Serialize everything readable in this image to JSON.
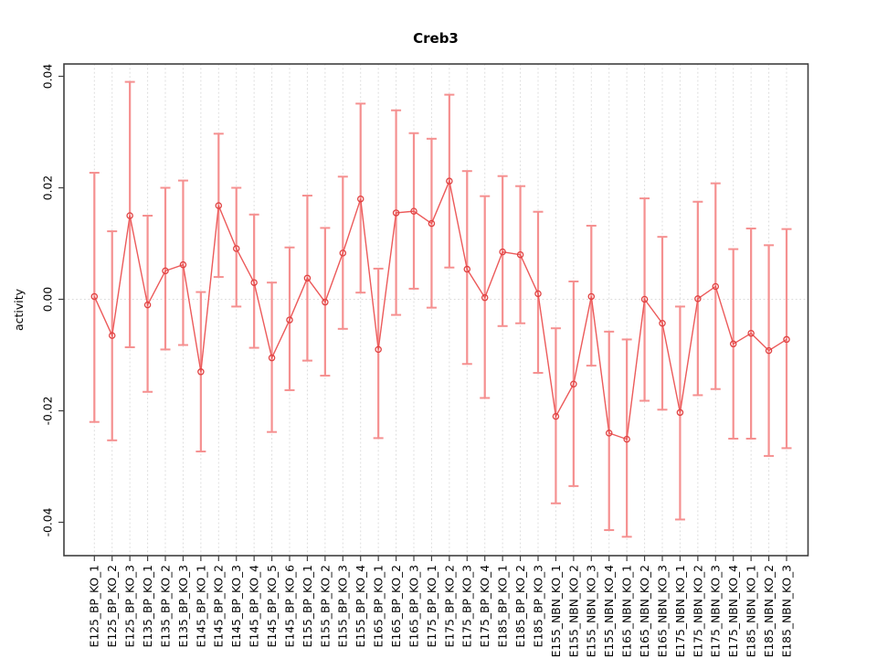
{
  "figure": {
    "background": "#ffffff"
  },
  "chart_data": {
    "type": "line",
    "subtype": "means-with-error-bars",
    "title": "Creb3",
    "ylabel": "activity",
    "xlabel": "",
    "legend": "none",
    "grid": {
      "vertical": "dotted light-gray line at every category",
      "horizontal": "dotted light-gray line at y = 0 only"
    },
    "marker": "open-circle",
    "ylim": [
      -0.046,
      0.0425
    ],
    "yticks": [
      0.04,
      0.02,
      0,
      -0.02,
      -0.04
    ],
    "ytick_labels": [
      "0.04",
      "0.02",
      "0.00",
      "-0.02",
      "-0.04"
    ],
    "categories": [
      "E125_BP_KO_1",
      "E125_BP_KO_2",
      "E125_BP_KO_3",
      "E135_BP_KO_1",
      "E135_BP_KO_2",
      "E135_BP_KO_3",
      "E145_BP_KO_1",
      "E145_BP_KO_2",
      "E145_BP_KO_3",
      "E145_BP_KO_4",
      "E145_BP_KO_5",
      "E145_BP_KO_6",
      "E155_BP_KO_1",
      "E155_BP_KO_2",
      "E155_BP_KO_3",
      "E155_BP_KO_4",
      "E165_BP_KO_1",
      "E165_BP_KO_2",
      "E165_BP_KO_3",
      "E175_BP_KO_1",
      "E175_BP_KO_2",
      "E175_BP_KO_3",
      "E175_BP_KO_4",
      "E185_BP_KO_1",
      "E185_BP_KO_2",
      "E185_BP_KO_3",
      "E155_NBN_KO_1",
      "E155_NBN_KO_2",
      "E155_NBN_KO_3",
      "E155_NBN_KO_4",
      "E165_NBN_KO_1",
      "E165_NBN_KO_2",
      "E165_NBN_KO_3",
      "E175_NBN_KO_1",
      "E175_NBN_KO_2",
      "E175_NBN_KO_3",
      "E175_NBN_KO_4",
      "E185_NBN_KO_1",
      "E185_NBN_KO_2",
      "E185_NBN_KO_3"
    ],
    "series": [
      {
        "name": "activity mean",
        "values": [
          0.0005,
          -0.0065,
          0.015,
          -0.001,
          0.0051,
          0.0062,
          -0.013,
          0.0168,
          0.0091,
          0.003,
          -0.0105,
          -0.0037,
          0.0038,
          -0.0005,
          0.0083,
          0.018,
          -0.009,
          0.0155,
          0.0158,
          0.0136,
          0.0212,
          0.0054,
          0.0003,
          0.0085,
          0.008,
          0.001,
          -0.021,
          -0.0152,
          0.0005,
          -0.024,
          -0.0251,
          0.0,
          -0.0043,
          -0.0203,
          0.0001,
          0.0023,
          -0.008,
          -0.0061,
          -0.0092,
          -0.0072
        ],
        "upper": [
          0.0227,
          0.0122,
          0.039,
          0.015,
          0.02,
          0.0213,
          0.0013,
          0.0297,
          0.02,
          0.0152,
          0.003,
          0.0093,
          0.0186,
          0.0128,
          0.022,
          0.0351,
          0.0055,
          0.0339,
          0.0298,
          0.0288,
          0.0367,
          0.023,
          0.0185,
          0.0221,
          0.0203,
          0.0157,
          -0.0052,
          0.0032,
          0.0132,
          -0.0058,
          -0.0072,
          0.0181,
          0.0112,
          -0.0013,
          0.0175,
          0.0208,
          0.009,
          0.0127,
          0.0097,
          0.0126
        ],
        "lower": [
          -0.022,
          -0.0253,
          -0.0086,
          -0.0166,
          -0.009,
          -0.0082,
          -0.0273,
          0.004,
          -0.0013,
          -0.0087,
          -0.0238,
          -0.0163,
          -0.011,
          -0.0137,
          -0.0053,
          0.0012,
          -0.0249,
          -0.0028,
          0.0019,
          -0.0015,
          0.0057,
          -0.0116,
          -0.0177,
          -0.0048,
          -0.0043,
          -0.0132,
          -0.0366,
          -0.0335,
          -0.0119,
          -0.0414,
          -0.0426,
          -0.0182,
          -0.0198,
          -0.0395,
          -0.0172,
          -0.0161,
          -0.025,
          -0.025,
          -0.0281,
          -0.0267
        ]
      }
    ],
    "colors": {
      "error_bar": "#f59090",
      "series_line": "#ec5a5a",
      "marker": "#e04343",
      "grid": "#dcdcdc",
      "axis": "#3f3f3f",
      "text": "#000000"
    }
  }
}
